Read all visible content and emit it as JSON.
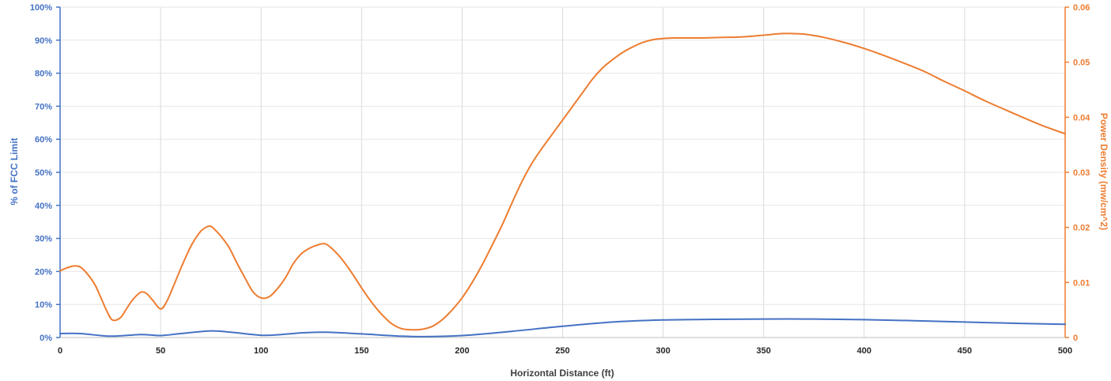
{
  "chart_data": {
    "type": "line",
    "title": "",
    "xlabel": "Horizontal Distance (ft)",
    "ylabel": "% of FCC Limit",
    "y2label": "Power Density (mw/cm^2)",
    "xlim": [
      0,
      500
    ],
    "ylim": [
      0,
      100
    ],
    "y2lim": [
      0,
      0.06
    ],
    "x_ticks": [
      "0",
      "50",
      "100",
      "150",
      "200",
      "250",
      "300",
      "350",
      "400",
      "450",
      "500"
    ],
    "y_ticks": [
      "0%",
      "10%",
      "20%",
      "30%",
      "40%",
      "50%",
      "60%",
      "70%",
      "80%",
      "90%",
      "100%"
    ],
    "y2_ticks": [
      "0",
      "0.01",
      "0.02",
      "0.03",
      "0.04",
      "0.05",
      "0.06"
    ],
    "grid": "vertical",
    "series": [
      {
        "axis": "left",
        "color": "#4472C4",
        "x": [
          0,
          10,
          25,
          40,
          50,
          60,
          75,
          85,
          100,
          110,
          120,
          132,
          150,
          175,
          200,
          225,
          250,
          275,
          300,
          325,
          350,
          375,
          400,
          425,
          450,
          475,
          500
        ],
        "y": [
          1.2,
          1.2,
          0.4,
          0.9,
          0.6,
          1.2,
          2.0,
          1.6,
          0.7,
          0.9,
          1.4,
          1.6,
          1.1,
          0.3,
          0.6,
          1.9,
          3.4,
          4.7,
          5.3,
          5.5,
          5.6,
          5.6,
          5.4,
          5.1,
          4.7,
          4.3,
          4.0
        ]
      },
      {
        "axis": "right",
        "color": "#ED7D31",
        "x": [
          0,
          3,
          7,
          10,
          13,
          17,
          20,
          23,
          26,
          30,
          33,
          36,
          40,
          43,
          46,
          50,
          53,
          56,
          60,
          63,
          66,
          70,
          73,
          75,
          77,
          80,
          84,
          88,
          92,
          96,
          100,
          104,
          108,
          112,
          116,
          120,
          124,
          128,
          132,
          136,
          140,
          145,
          150,
          155,
          160,
          165,
          170,
          175,
          180,
          185,
          190,
          195,
          200,
          205,
          210,
          215,
          220,
          225,
          230,
          235,
          240,
          245,
          250,
          255,
          260,
          265,
          270,
          275,
          280,
          285,
          290,
          295,
          300,
          305,
          310,
          315,
          320,
          330,
          340,
          350,
          360,
          370,
          380,
          390,
          400,
          410,
          420,
          430,
          440,
          450,
          460,
          470,
          480,
          490,
          500
        ],
        "y": [
          0.0121,
          0.0126,
          0.013,
          0.0128,
          0.0118,
          0.0098,
          0.0075,
          0.005,
          0.0032,
          0.0036,
          0.0052,
          0.0068,
          0.0082,
          0.008,
          0.0068,
          0.0052,
          0.0065,
          0.009,
          0.0125,
          0.015,
          0.0172,
          0.0193,
          0.0201,
          0.0202,
          0.0196,
          0.0184,
          0.0164,
          0.0135,
          0.0108,
          0.0083,
          0.0072,
          0.0074,
          0.0088,
          0.0108,
          0.0134,
          0.0152,
          0.0162,
          0.0168,
          0.017,
          0.0159,
          0.0143,
          0.0118,
          0.009,
          0.0064,
          0.0042,
          0.0025,
          0.0016,
          0.0014,
          0.0015,
          0.002,
          0.0032,
          0.005,
          0.0072,
          0.01,
          0.0132,
          0.0168,
          0.0205,
          0.0246,
          0.0285,
          0.0318,
          0.0345,
          0.037,
          0.0395,
          0.042,
          0.0445,
          0.047,
          0.049,
          0.0505,
          0.0518,
          0.0528,
          0.0536,
          0.0541,
          0.0543,
          0.0544,
          0.0544,
          0.0544,
          0.0544,
          0.0545,
          0.0546,
          0.0549,
          0.0552,
          0.0551,
          0.0545,
          0.0536,
          0.0525,
          0.0512,
          0.0498,
          0.0483,
          0.0465,
          0.0448,
          0.043,
          0.0414,
          0.0398,
          0.0383,
          0.037
        ]
      }
    ]
  }
}
